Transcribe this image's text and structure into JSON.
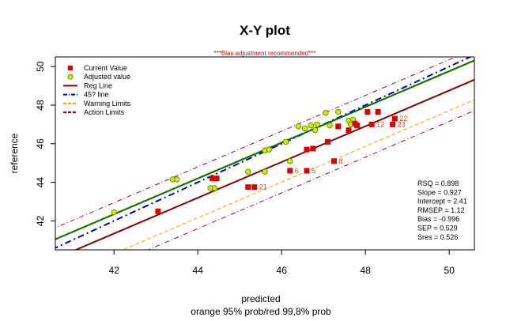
{
  "chart_data": {
    "type": "scatter",
    "title": "X-Y plot",
    "subtitle": "***Bias adjustment recommended***",
    "xlabel": "predicted",
    "xlabel2": "orange 95% prob/red 99,8% prob",
    "ylabel": "reference",
    "xlim": [
      40.6,
      50.6
    ],
    "ylim": [
      40.5,
      50.5
    ],
    "x_ticks": [
      "42",
      "44",
      "46",
      "48",
      "50"
    ],
    "y_ticks": [
      "42",
      "44",
      "46",
      "48",
      "50"
    ],
    "legend": {
      "position": "top-left",
      "entries": [
        {
          "label": "Current Value",
          "symbol": "square",
          "color": "#dd0000"
        },
        {
          "label": "Adjusted value",
          "symbol": "circle",
          "color": "#ccee00"
        },
        {
          "label": "Reg Line",
          "symbol": "solid",
          "color": "#8b0000"
        },
        {
          "label": "45? line",
          "symbol": "dashdot",
          "color": "#0000cc"
        },
        {
          "label": "Warning Limits",
          "symbol": "dashed",
          "color": "#ff9900"
        },
        {
          "label": "Action Limits",
          "symbol": "dashed",
          "color": "#aa0000"
        }
      ]
    },
    "stats": [
      "RSQ = 0.898",
      "Slope = 0.927",
      "Intercept = 2.41",
      "RMSEP = 1.12",
      "Bias = -0.996",
      "SEP = 0.529",
      "Sres = 0.526"
    ],
    "lines": {
      "reg_line": {
        "slope": 0.927,
        "intercept": 2.41,
        "color": "#8b0000"
      },
      "line_45": {
        "slope": 1.0,
        "intercept": 0.0,
        "color": "#0000cc"
      },
      "adjusted_fit": {
        "slope": 0.927,
        "intercept": 3.41,
        "color": "#007700"
      },
      "warning_limits": {
        "offsets": [
          -1.04,
          1.04
        ],
        "color": "#ff9900"
      },
      "action_limits": {
        "offsets": [
          -1.6,
          1.6
        ],
        "color": "#990044"
      }
    },
    "current_values": [
      {
        "x": 43.05,
        "y": 42.5
      },
      {
        "x": 44.35,
        "y": 44.2
      },
      {
        "x": 44.45,
        "y": 44.2
      },
      {
        "x": 45.2,
        "y": 43.75
      },
      {
        "x": 45.35,
        "y": 43.75,
        "label": "21"
      },
      {
        "x": 46.2,
        "y": 44.6,
        "label": "6"
      },
      {
        "x": 46.6,
        "y": 44.6,
        "label": "5"
      },
      {
        "x": 47.25,
        "y": 45.1,
        "label": "8"
      },
      {
        "x": 46.6,
        "y": 45.7
      },
      {
        "x": 46.75,
        "y": 45.75
      },
      {
        "x": 47.1,
        "y": 46.1
      },
      {
        "x": 47.35,
        "y": 46.9
      },
      {
        "x": 47.6,
        "y": 46.7
      },
      {
        "x": 47.75,
        "y": 47.05
      },
      {
        "x": 47.8,
        "y": 46.95
      },
      {
        "x": 48.05,
        "y": 47.65
      },
      {
        "x": 48.15,
        "y": 47.0,
        "label": "12"
      },
      {
        "x": 48.3,
        "y": 47.65
      },
      {
        "x": 48.65,
        "y": 47.0,
        "label": "23"
      },
      {
        "x": 48.7,
        "y": 47.3,
        "label": "22"
      }
    ],
    "adjusted_values": [
      {
        "x": 42.0,
        "y": 42.45
      },
      {
        "x": 43.4,
        "y": 44.15
      },
      {
        "x": 43.5,
        "y": 44.15
      },
      {
        "x": 44.3,
        "y": 43.7
      },
      {
        "x": 44.4,
        "y": 43.7
      },
      {
        "x": 45.2,
        "y": 44.55
      },
      {
        "x": 45.6,
        "y": 44.55
      },
      {
        "x": 45.6,
        "y": 45.65
      },
      {
        "x": 45.7,
        "y": 45.7
      },
      {
        "x": 46.1,
        "y": 46.1
      },
      {
        "x": 46.2,
        "y": 45.1
      },
      {
        "x": 46.4,
        "y": 46.9
      },
      {
        "x": 46.55,
        "y": 46.8
      },
      {
        "x": 46.7,
        "y": 46.95
      },
      {
        "x": 46.8,
        "y": 46.7
      },
      {
        "x": 46.85,
        "y": 47.0
      },
      {
        "x": 47.05,
        "y": 47.6
      },
      {
        "x": 47.15,
        "y": 46.95
      },
      {
        "x": 47.35,
        "y": 47.65
      },
      {
        "x": 47.6,
        "y": 47.2
      },
      {
        "x": 47.65,
        "y": 47.0
      },
      {
        "x": 47.7,
        "y": 47.25
      }
    ]
  }
}
